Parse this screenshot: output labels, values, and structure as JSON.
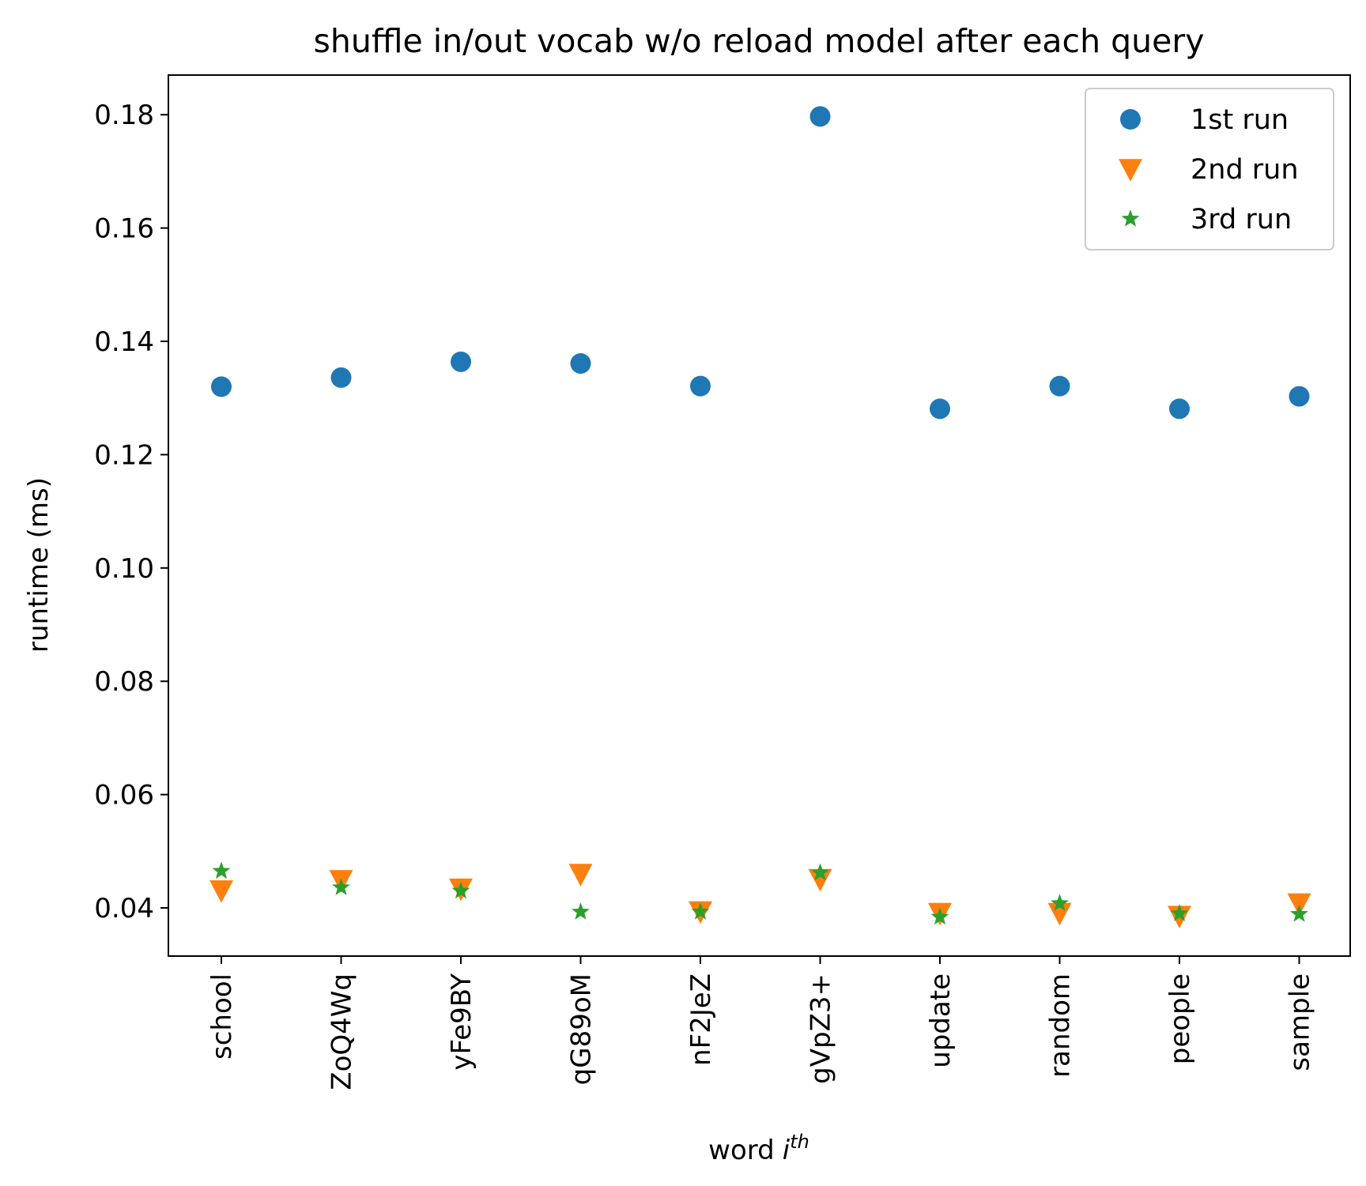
{
  "chart_data": {
    "type": "scatter",
    "title": "shuffle in/out vocab w/o reload model after each query",
    "xlabel": "word",
    "xlabel_math": "i",
    "xlabel_sup": "th",
    "ylabel": "runtime (ms)",
    "categories": [
      "school",
      "ZoQ4Wq",
      "yFe9BY",
      "qG89oM",
      "nF2JeZ",
      "gVpZ3+",
      "update",
      "random",
      "people",
      "sample"
    ],
    "ylim": [
      0.0315,
      0.187
    ],
    "yticks": [
      0.04,
      0.06,
      0.08,
      0.1,
      0.12,
      0.14,
      0.16,
      0.18
    ],
    "ytick_labels": [
      "0.04",
      "0.06",
      "0.08",
      "0.10",
      "0.12",
      "0.14",
      "0.16",
      "0.18"
    ],
    "grid": false,
    "legend_position": "top-right",
    "series": [
      {
        "name": "1st run",
        "marker": "circle",
        "color": "#1f77b4",
        "values": [
          0.132,
          0.1336,
          0.1364,
          0.1361,
          0.1321,
          0.1797,
          0.1281,
          0.1321,
          0.1281,
          0.1303
        ]
      },
      {
        "name": "2nd run",
        "marker": "triangle-down",
        "color": "#ff7f0e",
        "values": [
          0.0431,
          0.0449,
          0.0434,
          0.046,
          0.0394,
          0.0451,
          0.0391,
          0.0391,
          0.0386,
          0.0408
        ]
      },
      {
        "name": "3rd run",
        "marker": "star",
        "color": "#2ca02c",
        "values": [
          0.0465,
          0.0436,
          0.043,
          0.0393,
          0.0393,
          0.0462,
          0.0384,
          0.0408,
          0.039,
          0.0389
        ]
      }
    ]
  }
}
